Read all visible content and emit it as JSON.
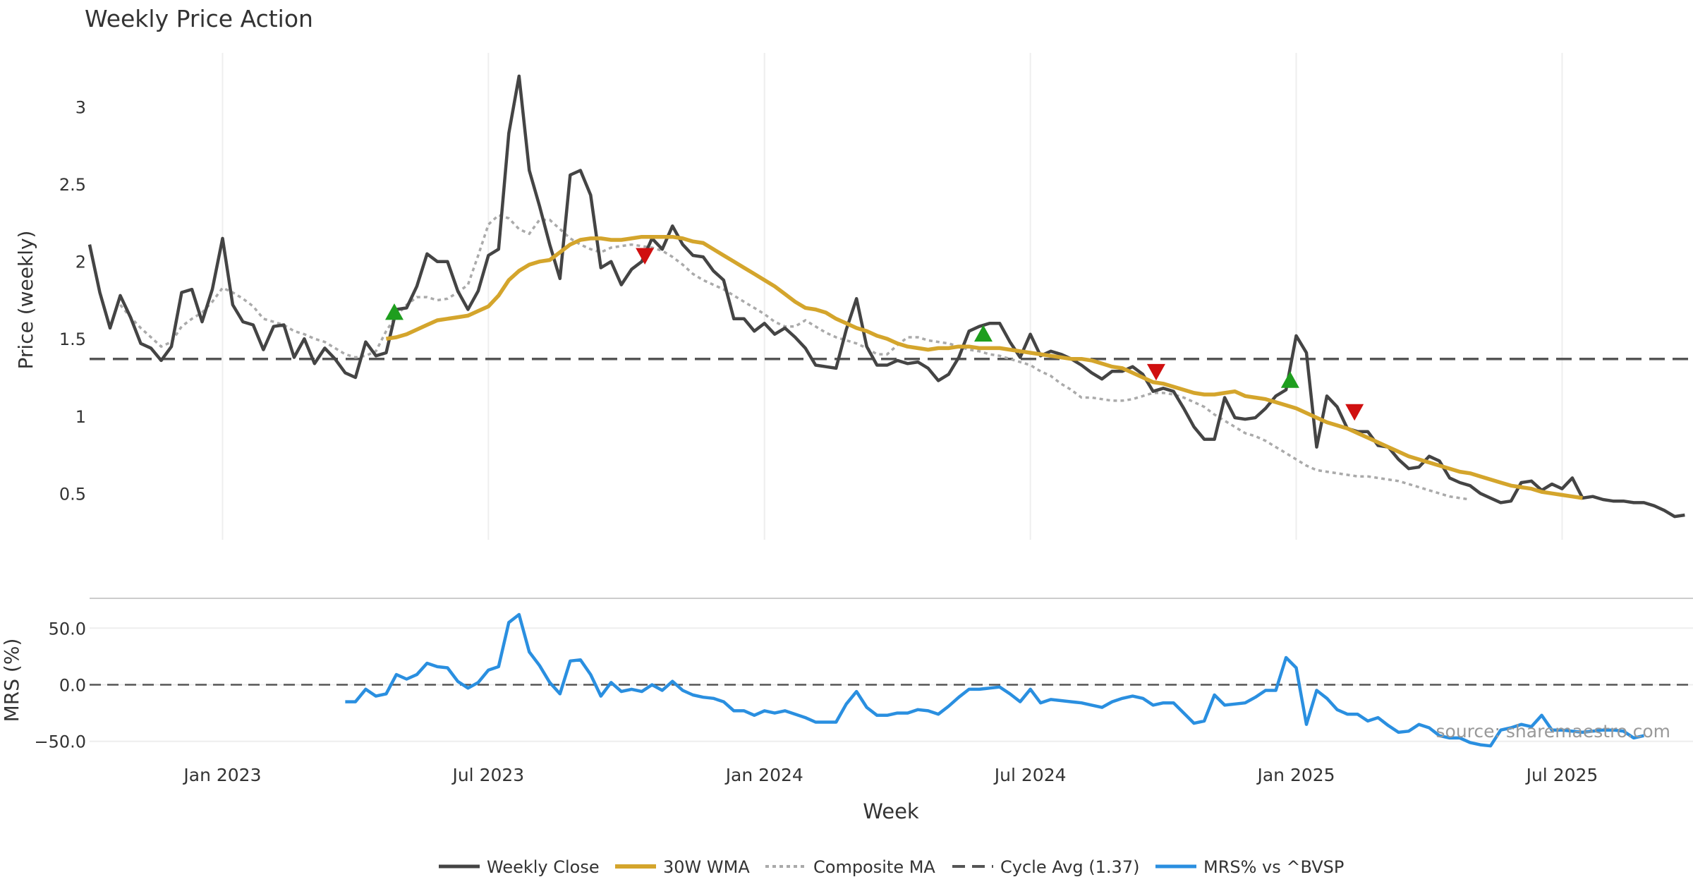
{
  "chart_data": [
    {
      "type": "line",
      "panel": "price",
      "title": "Weekly Price Action",
      "xlabel": "",
      "ylabel": "Price (weekly)",
      "x_tick_labels": [
        "Jan 2023",
        "Jul 2023",
        "Jan 2024",
        "Jul 2024",
        "Jan 2025",
        "Jul 2025"
      ],
      "x_tick_weeks": [
        13,
        39,
        66,
        92,
        118,
        144
      ],
      "y_ticks": [
        0.5,
        1,
        1.5,
        2,
        2.5,
        3
      ],
      "y_tick_labels": [
        "0.5",
        "1",
        "1.5",
        "2",
        "2.5",
        "3"
      ],
      "ylim": [
        0.2,
        3.35
      ],
      "x_range_weeks": [
        0,
        156.8
      ],
      "series": [
        {
          "name": "Weekly Close",
          "color": "#444444",
          "values": [
            2.11,
            1.8,
            1.57,
            1.78,
            1.64,
            1.47,
            1.44,
            1.36,
            1.45,
            1.8,
            1.82,
            1.61,
            1.82,
            2.15,
            1.72,
            1.61,
            1.59,
            1.43,
            1.58,
            1.59,
            1.38,
            1.5,
            1.34,
            1.44,
            1.37,
            1.28,
            1.25,
            1.48,
            1.39,
            1.41,
            1.69,
            1.7,
            1.84,
            2.05,
            2.0,
            2.0,
            1.81,
            1.69,
            1.81,
            2.04,
            2.08,
            2.83,
            3.2,
            2.59,
            2.36,
            2.11,
            1.89,
            2.56,
            2.59,
            2.43,
            1.96,
            2.0,
            1.85,
            1.95,
            2.0,
            2.15,
            2.08,
            2.23,
            2.11,
            2.04,
            2.03,
            1.94,
            1.88,
            1.63,
            1.63,
            1.55,
            1.6,
            1.53,
            1.57,
            1.51,
            1.44,
            1.33,
            1.32,
            1.31,
            1.56,
            1.76,
            1.45,
            1.33,
            1.33,
            1.36,
            1.34,
            1.35,
            1.31,
            1.23,
            1.27,
            1.38,
            1.55,
            1.58,
            1.6,
            1.6,
            1.48,
            1.38,
            1.53,
            1.39,
            1.42,
            1.4,
            1.37,
            1.33,
            1.28,
            1.24,
            1.29,
            1.29,
            1.32,
            1.27,
            1.16,
            1.18,
            1.16,
            1.05,
            0.93,
            0.85,
            0.85,
            1.12,
            0.99,
            0.98,
            0.99,
            1.05,
            1.13,
            1.17,
            1.52,
            1.41,
            0.8,
            1.13,
            1.06,
            0.92,
            0.9,
            0.9,
            0.81,
            0.8,
            0.72,
            0.66,
            0.67,
            0.74,
            0.71,
            0.6,
            0.57,
            0.55,
            0.5,
            0.47,
            0.44,
            0.45,
            0.57,
            0.58,
            0.52,
            0.56,
            0.53,
            0.6,
            0.47,
            0.48,
            0.46,
            0.45,
            0.45,
            0.44,
            0.44,
            0.42,
            0.39,
            0.35,
            0.36
          ]
        },
        {
          "name": "30W WMA",
          "color": "#D4A52C",
          "start_week": 29,
          "values": [
            1.5,
            1.51,
            1.53,
            1.56,
            1.59,
            1.62,
            1.63,
            1.64,
            1.65,
            1.68,
            1.71,
            1.78,
            1.88,
            1.94,
            1.98,
            2.0,
            2.01,
            2.06,
            2.11,
            2.14,
            2.15,
            2.15,
            2.14,
            2.14,
            2.15,
            2.16,
            2.16,
            2.16,
            2.16,
            2.15,
            2.13,
            2.12,
            2.08,
            2.04,
            2.0,
            1.96,
            1.92,
            1.88,
            1.84,
            1.79,
            1.74,
            1.7,
            1.69,
            1.67,
            1.63,
            1.6,
            1.57,
            1.55,
            1.52,
            1.5,
            1.47,
            1.45,
            1.44,
            1.43,
            1.44,
            1.44,
            1.45,
            1.45,
            1.44,
            1.44,
            1.44,
            1.43,
            1.42,
            1.41,
            1.4,
            1.39,
            1.38,
            1.37,
            1.37,
            1.36,
            1.34,
            1.32,
            1.31,
            1.28,
            1.25,
            1.22,
            1.21,
            1.19,
            1.17,
            1.15,
            1.14,
            1.14,
            1.15,
            1.16,
            1.13,
            1.12,
            1.11,
            1.09,
            1.07,
            1.05,
            1.02,
            0.99,
            0.96,
            0.94,
            0.92,
            0.89,
            0.86,
            0.83,
            0.8,
            0.77,
            0.74,
            0.72,
            0.7,
            0.68,
            0.66,
            0.64,
            0.63,
            0.61,
            0.59,
            0.57,
            0.55,
            0.54,
            0.53,
            0.51,
            0.5,
            0.49,
            0.48,
            0.47
          ]
        },
        {
          "name": "Composite MA",
          "color": "#AAAAAA",
          "start_week": 3,
          "values": [
            1.72,
            1.64,
            1.57,
            1.51,
            1.45,
            1.48,
            1.58,
            1.63,
            1.67,
            1.74,
            1.83,
            1.8,
            1.76,
            1.71,
            1.63,
            1.61,
            1.59,
            1.55,
            1.53,
            1.5,
            1.48,
            1.44,
            1.4,
            1.38,
            1.39,
            1.42,
            1.55,
            1.65,
            1.72,
            1.77,
            1.77,
            1.75,
            1.76,
            1.8,
            1.85,
            2.04,
            2.24,
            2.3,
            2.28,
            2.21,
            2.18,
            2.27,
            2.27,
            2.21,
            2.15,
            2.11,
            2.08,
            2.06,
            2.09,
            2.1,
            2.11,
            2.1,
            2.09,
            2.07,
            2.03,
            1.98,
            1.92,
            1.88,
            1.85,
            1.82,
            1.78,
            1.74,
            1.7,
            1.66,
            1.61,
            1.58,
            1.58,
            1.62,
            1.58,
            1.54,
            1.51,
            1.49,
            1.47,
            1.44,
            1.4,
            1.4,
            1.46,
            1.51,
            1.51,
            1.49,
            1.48,
            1.47,
            1.45,
            1.43,
            1.42,
            1.4,
            1.39,
            1.37,
            1.35,
            1.33,
            1.29,
            1.26,
            1.21,
            1.17,
            1.12,
            1.12,
            1.11,
            1.1,
            1.1,
            1.11,
            1.13,
            1.15,
            1.15,
            1.14,
            1.12,
            1.09,
            1.06,
            1.01,
            0.97,
            0.93,
            0.89,
            0.87,
            0.84,
            0.8,
            0.76,
            0.72,
            0.68,
            0.65,
            0.64,
            0.63,
            0.62,
            0.61,
            0.61,
            0.6,
            0.59,
            0.58,
            0.56,
            0.54,
            0.52,
            0.5,
            0.48,
            0.47,
            0.46
          ]
        },
        {
          "name": "Cycle Avg (1.37)",
          "color": "#555555",
          "value": 1.37
        }
      ],
      "buy_signals": [
        [
          29.8,
          1.67
        ],
        [
          87.4,
          1.53
        ],
        [
          117.4,
          1.23
        ]
      ],
      "sell_signals": [
        [
          54.3,
          2.04
        ],
        [
          104.3,
          1.29
        ],
        [
          123.7,
          1.03
        ]
      ],
      "legend": "bottom-center"
    },
    {
      "type": "line",
      "panel": "mrs",
      "ylabel": "MRS (%)",
      "xlabel": "Week",
      "y_ticks": [
        -50,
        0,
        50
      ],
      "y_tick_labels": [
        "−50.0",
        "0.0",
        "50.0"
      ],
      "ylim": [
        -62,
        72
      ],
      "series": [
        {
          "name": "MRS% vs ^BVSP",
          "color": "#2A8FE0",
          "start_week": 25,
          "values": [
            -15,
            -15,
            -4,
            -10,
            -8,
            9,
            5,
            9,
            19,
            16,
            15,
            3,
            -3,
            2,
            13,
            16,
            55,
            62,
            29,
            17,
            2,
            -8,
            21,
            22,
            9,
            -10,
            2,
            -6,
            -4,
            -6,
            0,
            -5,
            3,
            -5,
            -9,
            -11,
            -12,
            -15,
            -23,
            -23,
            -27,
            -23,
            -25,
            -23,
            -26,
            -29,
            -33,
            -33,
            -33,
            -17,
            -6,
            -20,
            -27,
            -27,
            -25,
            -25,
            -22,
            -23,
            -26,
            -19,
            -11,
            -4,
            -4,
            -3,
            -2,
            -8,
            -15,
            -4,
            -16,
            -13,
            -14,
            -15,
            -16,
            -18,
            -20,
            -15,
            -12,
            -10,
            -12,
            -18,
            -16,
            -16,
            -25,
            -34,
            -32,
            -9,
            -18,
            -17,
            -16,
            -11,
            -5,
            -5,
            24,
            15,
            -35,
            -5,
            -12,
            -22,
            -26,
            -26,
            -32,
            -29,
            -36,
            -42,
            -41,
            -35,
            -38,
            -45,
            -47,
            -47,
            -51,
            -53,
            -54,
            -40,
            -38,
            -35,
            -37,
            -27,
            -40,
            -40,
            -41,
            -42,
            -41,
            -40,
            -40,
            -41,
            -47,
            -45
          ]
        },
        {
          "name": "zero line",
          "color": "#555555",
          "value": 0
        }
      ]
    }
  ],
  "legend": {
    "entries": [
      "Weekly Close",
      "30W WMA",
      "Composite MA",
      "Cycle Avg (1.37)",
      "MRS% vs ^BVSP"
    ]
  },
  "watermark": "source: sharemaestro.com",
  "colors": {
    "close": "#444444",
    "wma": "#D4A52C",
    "composite": "#AAAAAA",
    "cycle": "#555555",
    "mrs": "#2A8FE0",
    "buy": "#1E9E1E",
    "sell": "#D01010",
    "grid": "#EEEEEE"
  }
}
